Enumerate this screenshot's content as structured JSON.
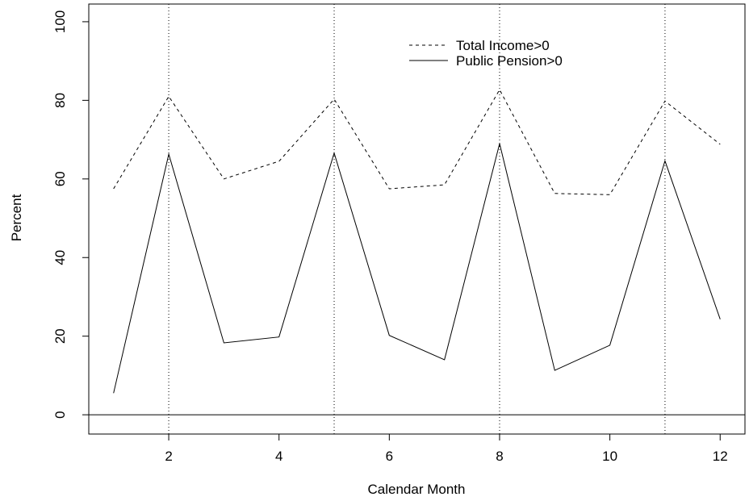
{
  "chart_data": {
    "type": "line",
    "xlabel": "Calendar Month",
    "ylabel": "Percent",
    "x": [
      1,
      2,
      3,
      4,
      5,
      6,
      7,
      8,
      9,
      10,
      11,
      12
    ],
    "series": [
      {
        "name": "Total Income>0",
        "style": "dashed",
        "values": [
          57.5,
          81.0,
          60.0,
          64.5,
          80.3,
          57.5,
          58.5,
          82.7,
          56.3,
          56.0,
          79.8,
          68.8
        ]
      },
      {
        "name": "Public Pension>0",
        "style": "solid",
        "values": [
          5.5,
          66.3,
          18.3,
          19.8,
          66.6,
          20.2,
          14.0,
          69.0,
          11.3,
          17.7,
          64.6,
          24.3
        ]
      }
    ],
    "xlim": [
      0.55,
      12.45
    ],
    "ylim": [
      -4.9,
      104.5
    ],
    "xticks": [
      "2",
      "4",
      "6",
      "8",
      "10",
      "12"
    ],
    "yticks": [
      "0",
      "20",
      "40",
      "60",
      "80",
      "100"
    ],
    "vlines": [
      2,
      5,
      8,
      11
    ],
    "hline": 0,
    "legend_position": "top-right",
    "colors": {
      "line": "#000000",
      "background": "#ffffff"
    }
  }
}
